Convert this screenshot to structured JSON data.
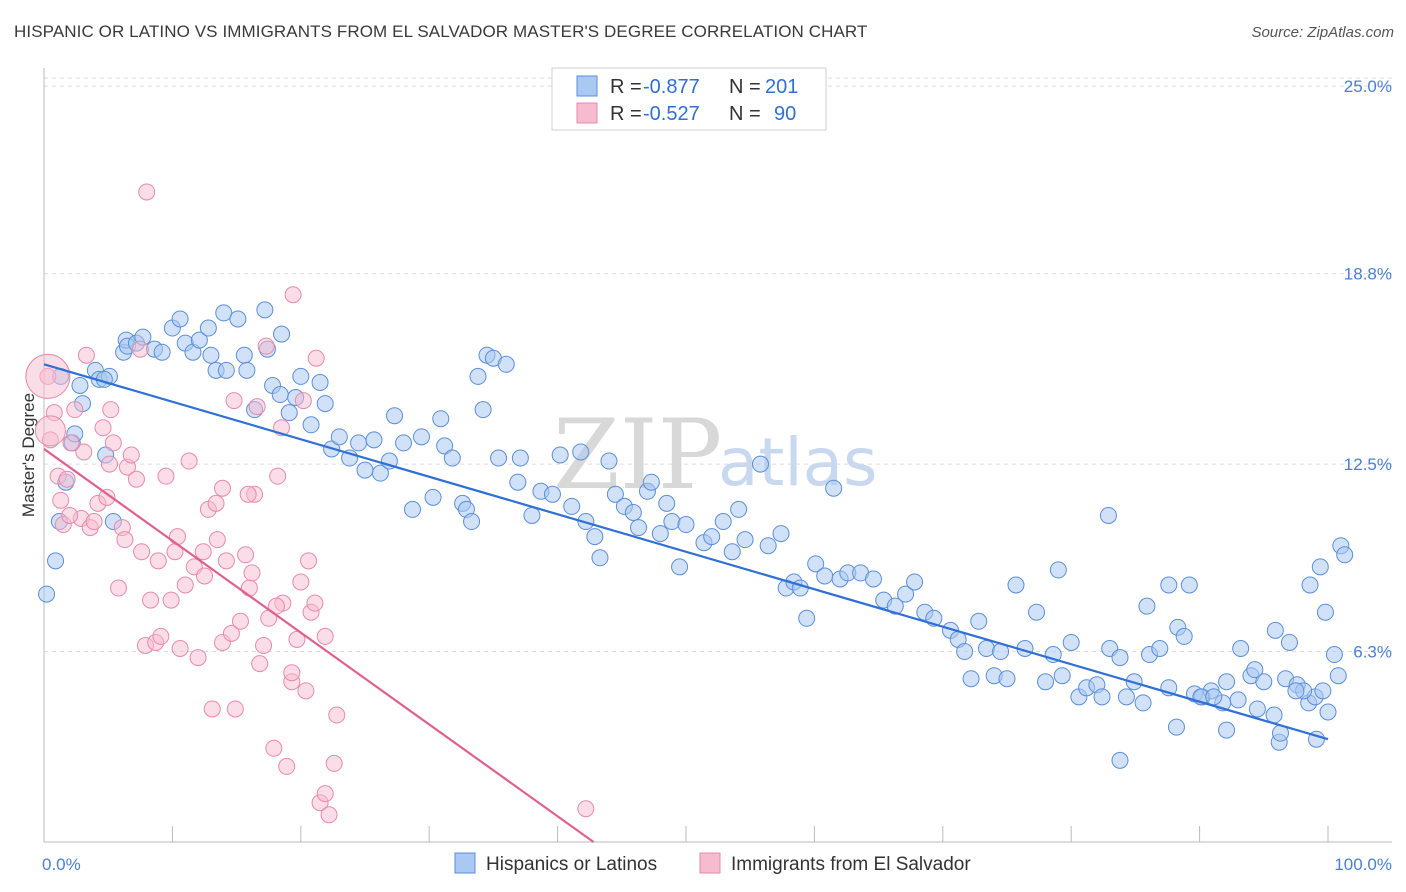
{
  "title": "HISPANIC OR LATINO VS IMMIGRANTS FROM EL SALVADOR MASTER'S DEGREE CORRELATION CHART",
  "source": "Source: ZipAtlas.com",
  "watermark": {
    "part1": "ZIP",
    "part2": "atlas"
  },
  "colors": {
    "blue_fill": "#a9c8f2",
    "blue_stroke": "#5b8fd9",
    "blue_line": "#2f6fd6",
    "pink_fill": "#f5bcd0",
    "pink_stroke": "#e88aaa",
    "pink_line": "#e0608e",
    "grid": "#dcdcdc",
    "tick_text": "#4a7fd6"
  },
  "legend": {
    "rows": [
      {
        "r_label": "R = ",
        "r_value": "-0.877",
        "n_label": "N = ",
        "n_value": "201"
      },
      {
        "r_label": "R = ",
        "r_value": "-0.527",
        "n_label": "N = ",
        "n_value": "90"
      }
    ]
  },
  "bottom_legend": [
    "Hispanics or Latinos",
    "Immigrants from El Salvador"
  ],
  "chart_data": {
    "type": "scatter",
    "title": "HISPANIC OR LATINO VS IMMIGRANTS FROM EL SALVADOR MASTER'S DEGREE CORRELATION CHART",
    "xlabel": "",
    "ylabel": "Master's Degree",
    "xlim": [
      0,
      100
    ],
    "ylim": [
      0,
      25.6
    ],
    "x_tick_labels": [
      "0.0%",
      "100.0%"
    ],
    "y_ticks": [
      6.3,
      12.5,
      18.8,
      25.0
    ],
    "y_tick_labels": [
      "6.3%",
      "12.5%",
      "18.8%",
      "25.0%"
    ],
    "grid": true,
    "legend_position": "top-center",
    "series": [
      {
        "name": "Hispanics or Latinos",
        "color": "#a9c8f2",
        "trend": {
          "x": [
            0,
            100
          ],
          "y": [
            15.8,
            3.4
          ]
        },
        "points": [
          [
            0.2,
            8.2
          ],
          [
            0.9,
            9.3
          ],
          [
            1.2,
            10.6
          ],
          [
            1.3,
            15.4
          ],
          [
            1.7,
            11.9
          ],
          [
            2.2,
            13.2
          ],
          [
            2.4,
            13.5
          ],
          [
            2.8,
            15.1
          ],
          [
            3.0,
            14.5
          ],
          [
            4.0,
            15.6
          ],
          [
            4.3,
            15.3
          ],
          [
            5.1,
            15.4
          ],
          [
            5.4,
            10.6
          ],
          [
            4.8,
            12.8
          ],
          [
            4.7,
            15.3
          ],
          [
            6.2,
            16.2
          ],
          [
            6.4,
            16.6
          ],
          [
            6.5,
            16.4
          ],
          [
            7.2,
            16.5
          ],
          [
            7.7,
            16.7
          ],
          [
            8.6,
            16.3
          ],
          [
            9.2,
            16.2
          ],
          [
            10.0,
            17.0
          ],
          [
            10.6,
            17.3
          ],
          [
            11.0,
            16.5
          ],
          [
            11.6,
            16.2
          ],
          [
            12.1,
            16.6
          ],
          [
            12.8,
            17.0
          ],
          [
            13.0,
            16.1
          ],
          [
            13.4,
            15.6
          ],
          [
            14.0,
            17.5
          ],
          [
            14.2,
            15.6
          ],
          [
            15.6,
            16.1
          ],
          [
            15.1,
            17.3
          ],
          [
            15.8,
            15.6
          ],
          [
            16.4,
            14.3
          ],
          [
            17.2,
            17.6
          ],
          [
            17.4,
            16.3
          ],
          [
            17.8,
            15.1
          ],
          [
            18.4,
            14.8
          ],
          [
            18.5,
            16.8
          ],
          [
            19.1,
            14.2
          ],
          [
            19.6,
            14.7
          ],
          [
            20.0,
            15.4
          ],
          [
            20.8,
            13.8
          ],
          [
            21.5,
            15.2
          ],
          [
            21.9,
            14.5
          ],
          [
            22.4,
            13.0
          ],
          [
            23.0,
            13.4
          ],
          [
            23.8,
            12.7
          ],
          [
            24.5,
            13.2
          ],
          [
            25.0,
            12.3
          ],
          [
            25.7,
            13.3
          ],
          [
            26.2,
            12.2
          ],
          [
            26.9,
            12.6
          ],
          [
            27.3,
            14.1
          ],
          [
            28.0,
            13.2
          ],
          [
            28.7,
            11.0
          ],
          [
            29.4,
            13.4
          ],
          [
            30.3,
            11.4
          ],
          [
            30.9,
            14.0
          ],
          [
            31.2,
            13.1
          ],
          [
            31.8,
            12.7
          ],
          [
            32.6,
            11.2
          ],
          [
            32.9,
            11.0
          ],
          [
            33.3,
            10.6
          ],
          [
            33.8,
            15.4
          ],
          [
            34.2,
            14.3
          ],
          [
            34.5,
            16.1
          ],
          [
            35.0,
            16.0
          ],
          [
            35.4,
            12.7
          ],
          [
            36.0,
            15.8
          ],
          [
            36.9,
            11.9
          ],
          [
            37.1,
            12.7
          ],
          [
            38.0,
            10.8
          ],
          [
            38.7,
            11.6
          ],
          [
            39.6,
            11.5
          ],
          [
            40.2,
            12.8
          ],
          [
            41.1,
            11.1
          ],
          [
            41.8,
            12.9
          ],
          [
            42.2,
            10.6
          ],
          [
            42.9,
            10.1
          ],
          [
            43.3,
            9.4
          ],
          [
            44.0,
            12.6
          ],
          [
            44.5,
            11.5
          ],
          [
            45.2,
            11.1
          ],
          [
            45.9,
            10.9
          ],
          [
            46.3,
            10.4
          ],
          [
            47.0,
            11.6
          ],
          [
            47.3,
            11.9
          ],
          [
            48.0,
            10.2
          ],
          [
            48.5,
            11.2
          ],
          [
            48.9,
            10.6
          ],
          [
            49.5,
            9.1
          ],
          [
            50.0,
            10.5
          ],
          [
            51.4,
            9.9
          ],
          [
            52.0,
            10.1
          ],
          [
            52.9,
            10.6
          ],
          [
            53.6,
            9.6
          ],
          [
            54.1,
            11.0
          ],
          [
            54.6,
            10.0
          ],
          [
            55.8,
            12.5
          ],
          [
            56.4,
            9.8
          ],
          [
            57.4,
            10.2
          ],
          [
            57.8,
            8.4
          ],
          [
            58.4,
            8.6
          ],
          [
            58.9,
            8.4
          ],
          [
            59.4,
            7.4
          ],
          [
            60.1,
            9.2
          ],
          [
            60.8,
            8.8
          ],
          [
            61.5,
            11.7
          ],
          [
            62.0,
            8.7
          ],
          [
            62.6,
            8.9
          ],
          [
            63.6,
            8.9
          ],
          [
            64.6,
            8.7
          ],
          [
            65.4,
            8.0
          ],
          [
            66.3,
            7.8
          ],
          [
            67.1,
            8.2
          ],
          [
            67.8,
            8.6
          ],
          [
            68.6,
            7.6
          ],
          [
            69.3,
            7.4
          ],
          [
            70.6,
            7.0
          ],
          [
            71.2,
            6.7
          ],
          [
            71.7,
            6.3
          ],
          [
            72.2,
            5.4
          ],
          [
            72.8,
            7.3
          ],
          [
            73.4,
            6.4
          ],
          [
            74.0,
            5.5
          ],
          [
            74.5,
            6.3
          ],
          [
            75.0,
            5.4
          ],
          [
            75.7,
            8.5
          ],
          [
            76.4,
            6.4
          ],
          [
            77.3,
            7.6
          ],
          [
            78.0,
            5.3
          ],
          [
            78.6,
            6.2
          ],
          [
            79.0,
            9.0
          ],
          [
            79.3,
            5.5
          ],
          [
            80.0,
            6.6
          ],
          [
            80.6,
            4.8
          ],
          [
            81.2,
            5.1
          ],
          [
            82.0,
            5.2
          ],
          [
            82.4,
            4.8
          ],
          [
            83.0,
            6.4
          ],
          [
            83.8,
            6.1
          ],
          [
            84.3,
            4.8
          ],
          [
            84.9,
            5.3
          ],
          [
            85.6,
            4.6
          ],
          [
            86.1,
            6.2
          ],
          [
            86.9,
            6.4
          ],
          [
            87.6,
            5.1
          ],
          [
            88.3,
            7.1
          ],
          [
            88.8,
            6.8
          ],
          [
            89.6,
            4.9
          ],
          [
            90.2,
            4.8
          ],
          [
            90.9,
            5.0
          ],
          [
            91.8,
            4.6
          ],
          [
            92.1,
            3.7
          ],
          [
            93.0,
            4.7
          ],
          [
            94.0,
            5.5
          ],
          [
            94.5,
            4.4
          ],
          [
            95.0,
            5.3
          ],
          [
            95.8,
            4.2
          ],
          [
            96.2,
            3.3
          ],
          [
            96.7,
            5.4
          ],
          [
            97.6,
            5.2
          ],
          [
            98.5,
            4.6
          ],
          [
            99.0,
            4.8
          ],
          [
            99.6,
            5.0
          ],
          [
            100.0,
            4.3
          ],
          [
            82.9,
            10.8
          ],
          [
            83.8,
            2.7
          ],
          [
            85.9,
            7.8
          ],
          [
            87.6,
            8.5
          ],
          [
            88.2,
            3.8
          ],
          [
            89.2,
            8.5
          ],
          [
            90.1,
            4.8
          ],
          [
            91.1,
            4.8
          ],
          [
            92.1,
            5.3
          ],
          [
            93.2,
            6.4
          ],
          [
            94.3,
            5.7
          ],
          [
            96.3,
            3.6
          ],
          [
            97.0,
            6.6
          ],
          [
            98.1,
            5.0
          ],
          [
            98.6,
            8.5
          ],
          [
            99.1,
            3.4
          ],
          [
            99.8,
            7.6
          ],
          [
            100.5,
            6.2
          ],
          [
            100.8,
            5.5
          ],
          [
            101.0,
            9.8
          ],
          [
            101.3,
            9.5
          ],
          [
            97.5,
            5.0
          ],
          [
            95.9,
            7.0
          ],
          [
            99.4,
            9.1
          ]
        ]
      },
      {
        "name": "Immigrants from El Salvador",
        "color": "#f5bcd0",
        "trend": {
          "x": [
            0,
            42.8
          ],
          "y": [
            13.0,
            0
          ]
        },
        "points": [
          [
            0.3,
            15.4
          ],
          [
            0.5,
            13.3
          ],
          [
            0.8,
            14.2
          ],
          [
            1.1,
            12.1
          ],
          [
            1.3,
            11.3
          ],
          [
            1.5,
            10.5
          ],
          [
            1.8,
            12.0
          ],
          [
            2.1,
            13.2
          ],
          [
            2.4,
            14.3
          ],
          [
            2.9,
            10.7
          ],
          [
            3.1,
            12.9
          ],
          [
            3.3,
            16.1
          ],
          [
            3.6,
            10.4
          ],
          [
            3.9,
            10.6
          ],
          [
            4.2,
            11.2
          ],
          [
            4.6,
            13.7
          ],
          [
            4.9,
            11.4
          ],
          [
            5.1,
            12.5
          ],
          [
            5.4,
            13.2
          ],
          [
            5.8,
            8.4
          ],
          [
            6.1,
            10.4
          ],
          [
            6.5,
            12.4
          ],
          [
            6.8,
            12.8
          ],
          [
            7.2,
            12.0
          ],
          [
            7.6,
            9.6
          ],
          [
            7.9,
            6.5
          ],
          [
            8.3,
            8.0
          ],
          [
            8.7,
            6.6
          ],
          [
            9.1,
            6.8
          ],
          [
            9.5,
            12.1
          ],
          [
            9.9,
            8.0
          ],
          [
            10.2,
            9.6
          ],
          [
            10.6,
            6.4
          ],
          [
            11.0,
            8.5
          ],
          [
            11.3,
            12.6
          ],
          [
            11.7,
            9.1
          ],
          [
            12.0,
            6.1
          ],
          [
            12.4,
            9.6
          ],
          [
            12.8,
            11.0
          ],
          [
            13.1,
            4.4
          ],
          [
            13.5,
            10.0
          ],
          [
            13.9,
            6.6
          ],
          [
            14.2,
            9.3
          ],
          [
            14.6,
            6.9
          ],
          [
            14.9,
            4.4
          ],
          [
            15.3,
            7.3
          ],
          [
            15.7,
            9.5
          ],
          [
            16.0,
            8.4
          ],
          [
            16.4,
            11.5
          ],
          [
            16.8,
            5.9
          ],
          [
            17.1,
            6.5
          ],
          [
            17.5,
            7.4
          ],
          [
            17.9,
            3.1
          ],
          [
            18.2,
            12.1
          ],
          [
            18.6,
            7.9
          ],
          [
            18.9,
            2.5
          ],
          [
            19.3,
            5.3
          ],
          [
            19.7,
            6.7
          ],
          [
            20.0,
            8.6
          ],
          [
            20.4,
            5.0
          ],
          [
            20.8,
            7.6
          ],
          [
            21.1,
            7.9
          ],
          [
            21.5,
            1.3
          ],
          [
            21.9,
            1.6
          ],
          [
            22.2,
            0.9
          ],
          [
            22.6,
            2.6
          ],
          [
            5.2,
            14.3
          ],
          [
            6.3,
            10.0
          ],
          [
            7.5,
            16.3
          ],
          [
            8.9,
            9.3
          ],
          [
            10.4,
            10.1
          ],
          [
            12.5,
            8.8
          ],
          [
            13.4,
            11.2
          ],
          [
            14.8,
            14.6
          ],
          [
            16.6,
            14.4
          ],
          [
            17.3,
            16.4
          ],
          [
            18.5,
            13.7
          ],
          [
            19.4,
            18.1
          ],
          [
            20.2,
            14.6
          ],
          [
            21.2,
            16.0
          ],
          [
            22.8,
            4.2
          ],
          [
            8.0,
            21.5
          ],
          [
            2.0,
            10.8
          ],
          [
            15.9,
            11.5
          ],
          [
            42.2,
            1.1
          ],
          [
            21.9,
            6.8
          ],
          [
            20.6,
            9.3
          ],
          [
            19.3,
            5.6
          ],
          [
            18.1,
            7.8
          ],
          [
            16.2,
            8.9
          ],
          [
            13.9,
            11.7
          ]
        ]
      }
    ]
  }
}
